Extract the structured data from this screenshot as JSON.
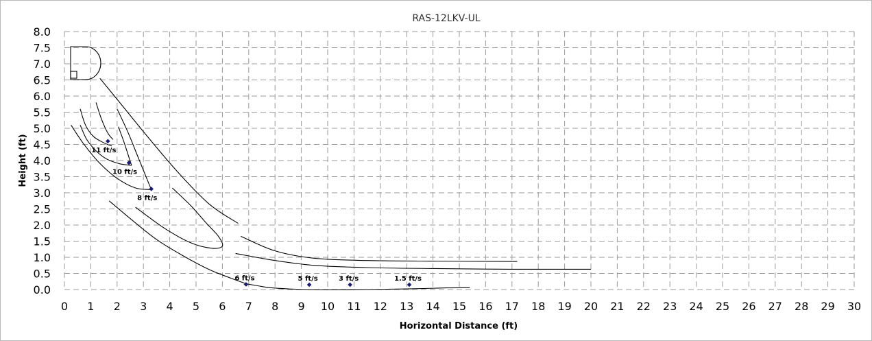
{
  "chart_data": {
    "type": "line",
    "title": "RAS-12LKV-UL",
    "xlabel": "Horizontal Distance (ft)",
    "ylabel": "Height (ft)",
    "xlim": [
      0,
      30
    ],
    "ylim": [
      0,
      8
    ],
    "x_ticks": [
      "0",
      "1",
      "2",
      "3",
      "4",
      "5",
      "6",
      "7",
      "8",
      "9",
      "10",
      "11",
      "12",
      "13",
      "14",
      "15",
      "16",
      "17",
      "18",
      "19",
      "20",
      "21",
      "22",
      "23",
      "24",
      "25",
      "26",
      "27",
      "28",
      "29",
      "30"
    ],
    "y_ticks": [
      "0.0",
      "0.5",
      "1.0",
      "1.5",
      "2.0",
      "2.5",
      "3.0",
      "3.5",
      "4.0",
      "4.5",
      "5.0",
      "5.5",
      "6.0",
      "6.5",
      "7.0",
      "7.5",
      "8.0"
    ],
    "grid": true,
    "legend": "none",
    "series": [
      {
        "points": [
          [
            1.2,
            5.8
          ],
          [
            1.4,
            5.3
          ],
          [
            1.65,
            4.85
          ],
          [
            1.85,
            4.65
          ]
        ]
      },
      {
        "points": [
          [
            0.6,
            5.6
          ],
          [
            0.8,
            5.1
          ],
          [
            1.1,
            4.75
          ],
          [
            1.5,
            4.55
          ],
          [
            1.8,
            4.45
          ]
        ]
      },
      {
        "points": [
          [
            2.05,
            5.05
          ],
          [
            2.25,
            4.6
          ],
          [
            2.45,
            4.1
          ],
          [
            2.55,
            3.85
          ]
        ]
      },
      {
        "points": [
          [
            0.6,
            5.1
          ],
          [
            0.85,
            4.65
          ],
          [
            1.2,
            4.3
          ],
          [
            1.6,
            4.05
          ],
          [
            2.1,
            3.9
          ],
          [
            2.55,
            3.85
          ]
        ]
      },
      {
        "points": [
          [
            2.0,
            5.6
          ],
          [
            2.4,
            4.9
          ],
          [
            2.8,
            4.1
          ],
          [
            3.1,
            3.5
          ],
          [
            3.3,
            3.1
          ]
        ]
      },
      {
        "points": [
          [
            0.25,
            5.1
          ],
          [
            0.7,
            4.55
          ],
          [
            1.3,
            3.95
          ],
          [
            2.0,
            3.45
          ],
          [
            2.7,
            3.15
          ],
          [
            3.3,
            3.1
          ]
        ]
      },
      {
        "points": [
          [
            1.35,
            6.55
          ],
          [
            2.2,
            5.7
          ],
          [
            3.2,
            4.7
          ],
          [
            4.3,
            3.65
          ],
          [
            5.5,
            2.65
          ],
          [
            6.6,
            2.05
          ]
        ]
      },
      {
        "points": [
          [
            4.1,
            3.15
          ],
          [
            4.8,
            2.6
          ],
          [
            5.4,
            2.05
          ],
          [
            5.85,
            1.65
          ],
          [
            6.0,
            1.35
          ],
          [
            5.6,
            1.28
          ],
          [
            4.8,
            1.45
          ],
          [
            3.8,
            1.9
          ],
          [
            2.7,
            2.55
          ]
        ]
      },
      {
        "points": [
          [
            1.7,
            2.75
          ],
          [
            2.5,
            2.2
          ],
          [
            3.5,
            1.55
          ],
          [
            4.5,
            1.05
          ],
          [
            5.5,
            0.62
          ],
          [
            6.3,
            0.36
          ],
          [
            6.9,
            0.18
          ]
        ]
      },
      {
        "points": [
          [
            6.9,
            0.18
          ],
          [
            7.8,
            0.06
          ],
          [
            8.8,
            0.01
          ],
          [
            10.0,
            -0.01
          ],
          [
            11.5,
            0.0
          ],
          [
            13.0,
            0.02
          ],
          [
            14.5,
            0.05
          ],
          [
            15.4,
            0.06
          ]
        ]
      },
      {
        "points": [
          [
            6.5,
            1.12
          ],
          [
            8.0,
            0.9
          ],
          [
            9.5,
            0.75
          ],
          [
            11.5,
            0.68
          ],
          [
            14.0,
            0.65
          ],
          [
            17.0,
            0.63
          ],
          [
            20.0,
            0.63
          ]
        ]
      },
      {
        "points": [
          [
            6.7,
            1.65
          ],
          [
            8.0,
            1.2
          ],
          [
            9.5,
            0.97
          ],
          [
            11.5,
            0.9
          ],
          [
            14.0,
            0.88
          ],
          [
            17.2,
            0.87
          ]
        ]
      }
    ],
    "markers": [
      {
        "label": "11 ft/s",
        "x": 1.65,
        "y": 4.6
      },
      {
        "label": "10 ft/s",
        "x": 2.45,
        "y": 3.93
      },
      {
        "label": "8 ft/s",
        "x": 3.3,
        "y": 3.12
      },
      {
        "label": "6 ft/s",
        "x": 6.9,
        "y": 0.16
      },
      {
        "label": "5 ft/s",
        "x": 9.3,
        "y": 0.15
      },
      {
        "label": "3 ft/s",
        "x": 10.85,
        "y": 0.15
      },
      {
        "label": "1.5 ft/s",
        "x": 13.1,
        "y": 0.15
      }
    ],
    "unit_icon": "ceiling-cassette-icon"
  }
}
